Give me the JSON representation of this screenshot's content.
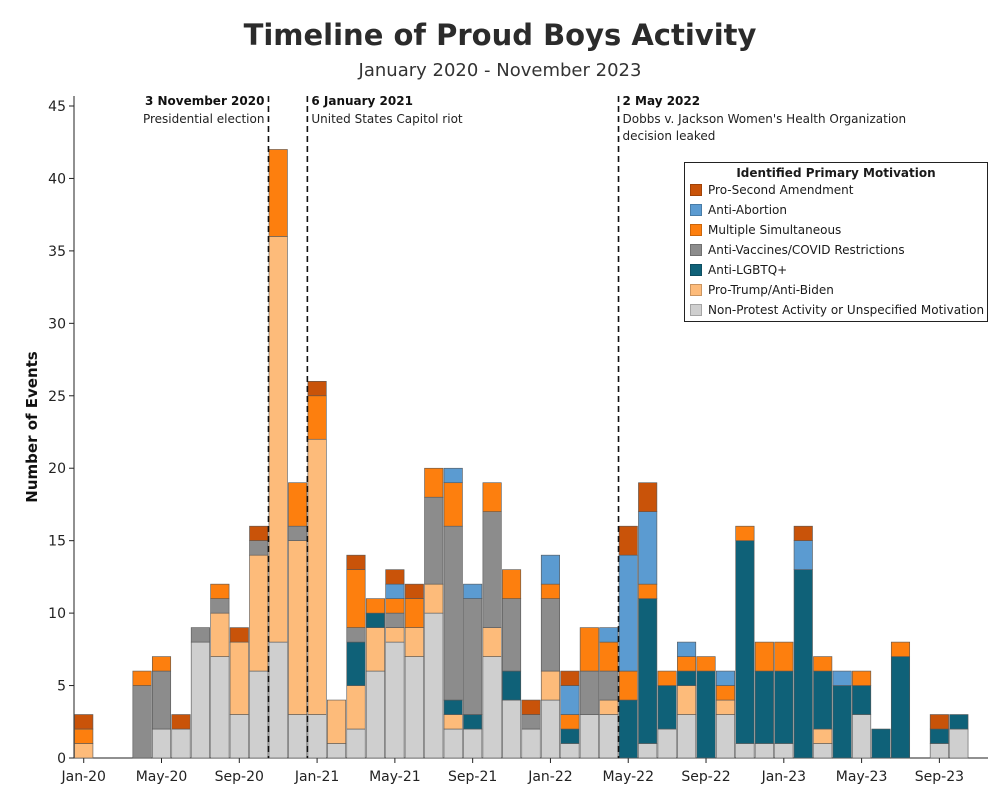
{
  "chart_data": {
    "type": "bar",
    "stacked": true,
    "title": "Timeline of Proud Boys Activity",
    "subtitle": "January 2020 - November 2023",
    "ylabel": "Number of Events",
    "xlabel": "",
    "ylim": [
      0,
      45
    ],
    "yticks": [
      0,
      5,
      10,
      15,
      20,
      25,
      30,
      35,
      40,
      45
    ],
    "x_tick_labels": [
      "Jan-20",
      "May-20",
      "Sep-20",
      "Jan-21",
      "May-21",
      "Sep-21",
      "Jan-22",
      "May-22",
      "Sep-22",
      "Jan-23",
      "May-23",
      "Sep-23"
    ],
    "categories": [
      "Jan-20",
      "Feb-20",
      "Mar-20",
      "Apr-20",
      "May-20",
      "Jun-20",
      "Jul-20",
      "Aug-20",
      "Sep-20",
      "Oct-20",
      "Nov-20",
      "Dec-20",
      "Jan-21",
      "Feb-21",
      "Mar-21",
      "Apr-21",
      "May-21",
      "Jun-21",
      "Jul-21",
      "Aug-21",
      "Sep-21",
      "Oct-21",
      "Nov-21",
      "Dec-21",
      "Jan-22",
      "Feb-22",
      "Mar-22",
      "Apr-22",
      "May-22",
      "Jun-22",
      "Jul-22",
      "Aug-22",
      "Sep-22",
      "Oct-22",
      "Nov-22",
      "Dec-22",
      "Jan-23",
      "Feb-23",
      "Mar-23",
      "Apr-23",
      "May-23",
      "Jun-23",
      "Jul-23",
      "Aug-23",
      "Sep-23",
      "Oct-23",
      "Nov-23"
    ],
    "legend_title": "Identified Primary Motivation",
    "legend_position": "top-right",
    "grid": false,
    "series": [
      {
        "name": "Non-Protest Activity or Unspecified Motivation",
        "color": "#cfcfcf",
        "values": [
          0,
          0,
          0,
          0,
          2,
          2,
          8,
          7,
          3,
          6,
          8,
          3,
          3,
          1,
          2,
          6,
          8,
          7,
          10,
          2,
          2,
          7,
          4,
          2,
          4,
          1,
          3,
          3,
          0,
          1,
          2,
          3,
          0,
          3,
          1,
          1,
          1,
          0,
          1,
          0,
          3,
          0,
          0,
          0,
          1,
          2,
          0
        ]
      },
      {
        "name": "Pro-Trump/Anti-Biden",
        "color": "#fdbb7a",
        "values": [
          1,
          0,
          0,
          0,
          0,
          0,
          0,
          3,
          5,
          8,
          28,
          12,
          19,
          3,
          3,
          3,
          1,
          2,
          2,
          1,
          0,
          2,
          0,
          0,
          2,
          0,
          0,
          1,
          0,
          0,
          0,
          2,
          0,
          1,
          0,
          0,
          0,
          0,
          1,
          0,
          0,
          0,
          0,
          0,
          0,
          0,
          0
        ]
      },
      {
        "name": "Anti-LGBTQ+",
        "color": "#0f6178",
        "values": [
          0,
          0,
          0,
          0,
          0,
          0,
          0,
          0,
          0,
          0,
          0,
          0,
          0,
          0,
          3,
          1,
          0,
          0,
          0,
          1,
          1,
          0,
          2,
          0,
          0,
          1,
          0,
          0,
          4,
          10,
          3,
          1,
          6,
          0,
          14,
          5,
          5,
          13,
          4,
          5,
          2,
          2,
          7,
          0,
          1,
          1,
          0
        ]
      },
      {
        "name": "Anti-Vaccines/COVID Restrictions",
        "color": "#8c8c8c",
        "values": [
          0,
          0,
          0,
          5,
          4,
          0,
          1,
          1,
          0,
          1,
          0,
          1,
          0,
          0,
          1,
          0,
          1,
          0,
          6,
          12,
          8,
          8,
          5,
          1,
          5,
          0,
          3,
          2,
          0,
          0,
          0,
          0,
          0,
          0,
          0,
          0,
          0,
          0,
          0,
          0,
          0,
          0,
          0,
          0,
          0,
          0,
          0
        ]
      },
      {
        "name": "Multiple Simultaneous",
        "color": "#fd7f0e",
        "values": [
          1,
          0,
          0,
          1,
          1,
          0,
          0,
          1,
          0,
          0,
          6,
          3,
          3,
          0,
          4,
          1,
          1,
          2,
          2,
          3,
          0,
          2,
          2,
          0,
          1,
          1,
          3,
          2,
          2,
          1,
          1,
          1,
          1,
          1,
          1,
          2,
          2,
          0,
          1,
          0,
          1,
          0,
          1,
          0,
          0,
          0,
          0
        ]
      },
      {
        "name": "Anti-Abortion",
        "color": "#5b9bd1",
        "values": [
          0,
          0,
          0,
          0,
          0,
          0,
          0,
          0,
          0,
          0,
          0,
          0,
          0,
          0,
          0,
          0,
          1,
          0,
          0,
          1,
          1,
          0,
          0,
          0,
          2,
          2,
          0,
          1,
          8,
          5,
          0,
          1,
          0,
          1,
          0,
          0,
          0,
          2,
          0,
          1,
          0,
          0,
          0,
          0,
          0,
          0,
          0
        ]
      },
      {
        "name": "Pro-Second Amendment",
        "color": "#c95309",
        "values": [
          1,
          0,
          0,
          0,
          0,
          1,
          0,
          0,
          1,
          1,
          0,
          0,
          1,
          0,
          1,
          0,
          1,
          1,
          0,
          0,
          0,
          0,
          0,
          1,
          0,
          1,
          0,
          0,
          2,
          2,
          0,
          0,
          0,
          0,
          0,
          0,
          0,
          1,
          0,
          0,
          0,
          0,
          0,
          0,
          1,
          0,
          0
        ]
      }
    ],
    "annotations": [
      {
        "title": "3 November 2020",
        "text": "Presidential election",
        "after_category": "Oct-20",
        "align": "left"
      },
      {
        "title": "6 January 2021",
        "text": "United States Capitol riot",
        "after_category": "Dec-20",
        "align": "right"
      },
      {
        "title": "2 May 2022",
        "text": "Dobbs v. Jackson Women's Health Organization decision leaked",
        "after_category": "Apr-22",
        "align": "right"
      }
    ]
  }
}
